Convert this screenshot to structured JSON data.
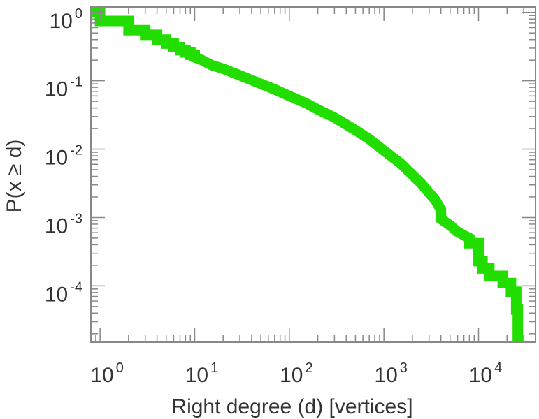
{
  "chart_data": {
    "type": "line",
    "xlabel": "Right degree (d) [vertices]",
    "ylabel": "P(x ≥ d)",
    "x_scale": "log",
    "y_scale": "log",
    "xlim": [
      0.8,
      40000
    ],
    "ylim": [
      1.5e-05,
      1.2
    ],
    "grid": false,
    "legend": "none",
    "x_ticks": [
      {
        "base": "10",
        "exp": "0",
        "value": 1
      },
      {
        "base": "10",
        "exp": "1",
        "value": 10
      },
      {
        "base": "10",
        "exp": "2",
        "value": 100
      },
      {
        "base": "10",
        "exp": "3",
        "value": 1000
      },
      {
        "base": "10",
        "exp": "4",
        "value": 10000
      }
    ],
    "y_ticks": [
      {
        "base": "10",
        "exp": "0",
        "value": 1
      },
      {
        "base": "10",
        "exp": "-1",
        "value": 0.1
      },
      {
        "base": "10",
        "exp": "-2",
        "value": 0.01
      },
      {
        "base": "10",
        "exp": "-3",
        "value": 0.001
      },
      {
        "base": "10",
        "exp": "-4",
        "value": 0.0001
      }
    ],
    "series": [
      {
        "color": "#22dd00",
        "points": [
          [
            0.8,
            1.0
          ],
          [
            1,
            1.0
          ],
          [
            1,
            0.75
          ],
          [
            2,
            0.75
          ],
          [
            2,
            0.55
          ],
          [
            3,
            0.55
          ],
          [
            3,
            0.47
          ],
          [
            4,
            0.47
          ],
          [
            4,
            0.4
          ],
          [
            5,
            0.4
          ],
          [
            5,
            0.35
          ],
          [
            6,
            0.35
          ],
          [
            6,
            0.31
          ],
          [
            7,
            0.31
          ],
          [
            7,
            0.28
          ],
          [
            8,
            0.28
          ],
          [
            8,
            0.26
          ],
          [
            9,
            0.26
          ],
          [
            9,
            0.24
          ],
          [
            10,
            0.24
          ],
          [
            10,
            0.22
          ],
          [
            12,
            0.2
          ],
          [
            15,
            0.17
          ],
          [
            20,
            0.15
          ],
          [
            30,
            0.12
          ],
          [
            50,
            0.09
          ],
          [
            70,
            0.075
          ],
          [
            100,
            0.06
          ],
          [
            150,
            0.047
          ],
          [
            200,
            0.038
          ],
          [
            300,
            0.029
          ],
          [
            500,
            0.019
          ],
          [
            700,
            0.014
          ],
          [
            1000,
            0.0095
          ],
          [
            1500,
            0.0062
          ],
          [
            2000,
            0.0042
          ],
          [
            2500,
            0.0031
          ],
          [
            3000,
            0.0023
          ],
          [
            3500,
            0.0018
          ],
          [
            4000,
            0.0013
          ],
          [
            4000,
            0.00095
          ],
          [
            5000,
            0.00077
          ],
          [
            6000,
            0.00062
          ],
          [
            7000,
            0.00055
          ],
          [
            8000,
            0.0005
          ],
          [
            8000,
            0.00042
          ],
          [
            10000,
            0.00042
          ],
          [
            10000,
            0.00023
          ],
          [
            11000,
            0.00023
          ],
          [
            11000,
            0.00018
          ],
          [
            13000,
            0.00018
          ],
          [
            13000,
            0.00014
          ],
          [
            18000,
            0.00014
          ],
          [
            18000,
            0.00011
          ],
          [
            22000,
            0.00011
          ],
          [
            22000,
            8.2e-05
          ],
          [
            25000,
            8.2e-05
          ],
          [
            25000,
            4.5e-05
          ],
          [
            26000,
            4.5e-05
          ],
          [
            26000,
            1.5e-05
          ]
        ]
      }
    ]
  }
}
